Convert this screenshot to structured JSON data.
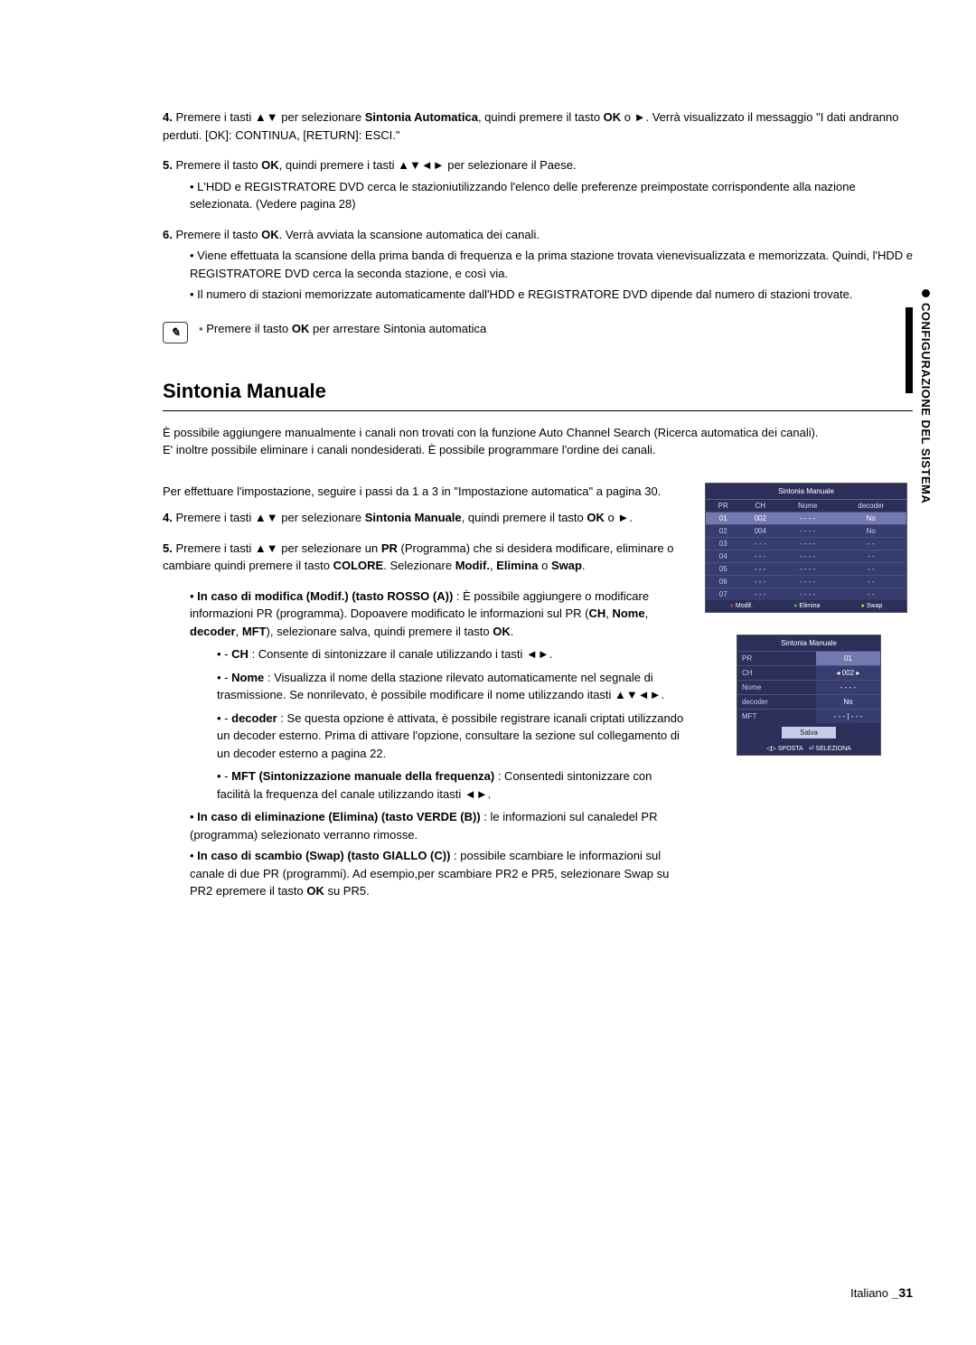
{
  "sideTab": "CONFIGURAZIONE DEL SISTEMA",
  "topSteps": [
    {
      "num": "4.",
      "html": "Premere i tasti ▲▼ per selezionare <b>Sintonia Automatica</b>, quindi premere il tasto <b>OK</b> o ►. Verrà visualizzato il messaggio \"I dati andranno perduti. [OK]: CONTINUA, [RETURN]: ESCI.\""
    },
    {
      "num": "5.",
      "html": "Premere il tasto <b>OK</b>, quindi premere i tasti ▲▼◄► per selezionare il Paese.",
      "bullets": [
        "L'HDD e REGISTRATORE DVD cerca le stazioniutilizzando l'elenco delle preferenze preimpostate corrispondente alla nazione selezionata. (Vedere pagina 28)"
      ]
    },
    {
      "num": "6.",
      "html": "Premere il tasto <b>OK</b>. Verrà avviata la scansione automatica dei canali.",
      "bullets": [
        "Viene effettuata la scansione della prima banda di frequenza e la prima stazione trovata vienevisualizzata e memorizzata. Quindi, l'HDD e REGISTRATORE DVD cerca la seconda stazione, e così via.",
        "Il numero di stazioni memorizzate automaticamente dall'HDD e REGISTRATORE DVD dipende dal numero di stazioni trovate."
      ]
    }
  ],
  "noteHtml": "Premere il tasto <b>OK</b> per arrestare Sintonia automatica",
  "sectionTitle": "Sintonia Manuale",
  "sectionIntro": [
    "È possibile aggiungere manualmente i canali non trovati con la funzione Auto Channel Search (Ricerca automatica dei canali).",
    "E' inoltre possibile eliminare i canali nondesiderati. È possibile programmare l'ordine dei canali."
  ],
  "preStep": "Per effettuare l'impostazione, seguire i passi da 1 a 3 in \"Impostazione automatica\" a pagina 30.",
  "manualSteps": [
    {
      "num": "4.",
      "html": "Premere i tasti ▲▼ per selezionare <b>Sintonia Manuale</b>, quindi premere il tasto <b>OK</b> o ►."
    },
    {
      "num": "5.",
      "html": "Premere i tasti ▲▼ per selezionare un <b>PR</b> (Programma) che si desidera modificare, eliminare o cambiare quindi premere il tasto <b>COLORE</b>. Selezionare <b>Modif.</b>, <b>Elimina</b> o <b>Swap</b>."
    }
  ],
  "modifBullets": [
    {
      "lead": "<b>In caso di modifica (Modif.) (tasto ROSSO (A))</b> : È possibile aggiungere o modificare informazioni PR (programma). Dopoavere modificato le informazioni sul PR (<b>CH</b>, <b>Nome</b>, <b>decoder</b>, <b>MFT</b>), selezionare salva, quindi premere il tasto <b>OK</b>.",
      "dashes": [
        "<b>CH</b> : Consente di sintonizzare il canale utilizzando i tasti ◄►.",
        "<b>Nome</b> : Visualizza il nome della stazione rilevato automaticamente nel segnale di trasmissione. Se nonrilevato, è possibile modificare il nome utilizzando itasti ▲▼◄►.",
        "<b>decoder</b> : Se questa opzione è attivata, è possibile registrare icanali criptati utilizzando un decoder esterno. Prima di attivare l'opzione, consultare la sezione sul collegamento di un decoder esterno a pagina 22.",
        "<b>MFT (Sintonizzazione manuale della frequenza)</b> : Consentedi sintonizzare con facilità la frequenza del canale utilizzando itasti ◄►."
      ]
    },
    {
      "lead": "<b>In caso di eliminazione (Elimina) (tasto VERDE (B))</b> : le informazioni sul canaledel PR (programma) selezionato verranno rimosse."
    },
    {
      "lead": "<b>In caso di scambio (Swap) (tasto GIALLO (C))</b> : possibile scambiare le informazioni sul canale di due PR (programmi). Ad esempio,per scambiare PR2 e PR5, selezionare Swap su PR2 epremere il tasto <b>OK</b> su PR5."
    }
  ],
  "tv1": {
    "title": "Sintonia Manuale",
    "headers": [
      "PR",
      "CH",
      "Nome",
      "decoder"
    ],
    "rows": [
      [
        "01",
        "002",
        "- - - -",
        "No"
      ],
      [
        "02",
        "004",
        "- - - -",
        "No"
      ],
      [
        "03",
        "- - -",
        "- - - -",
        "- -"
      ],
      [
        "04",
        "- - -",
        "- - - -",
        "- -"
      ],
      [
        "05",
        "- - -",
        "- - - -",
        "- -"
      ],
      [
        "06",
        "- - -",
        "- - - -",
        "- -"
      ],
      [
        "07",
        "- - -",
        "- - - -",
        "- -"
      ]
    ],
    "footer": [
      "Modif.",
      "Elimina",
      "Swap"
    ]
  },
  "tv2": {
    "title": "Sintonia Manuale",
    "rows": [
      {
        "lbl": "PR",
        "val": "01",
        "hl": true
      },
      {
        "lbl": "CH",
        "val": "◂  002  ▸"
      },
      {
        "lbl": "Nome",
        "val": "- - - -"
      },
      {
        "lbl": "decoder",
        "val": "No"
      },
      {
        "lbl": "MFT",
        "val": "- - - | - - -"
      }
    ],
    "save": "Salva",
    "footer": [
      "◁▷ SPOSTA",
      "⏎ SELEZIONA"
    ]
  },
  "footer": {
    "lang": "Italiano",
    "page": "31"
  }
}
